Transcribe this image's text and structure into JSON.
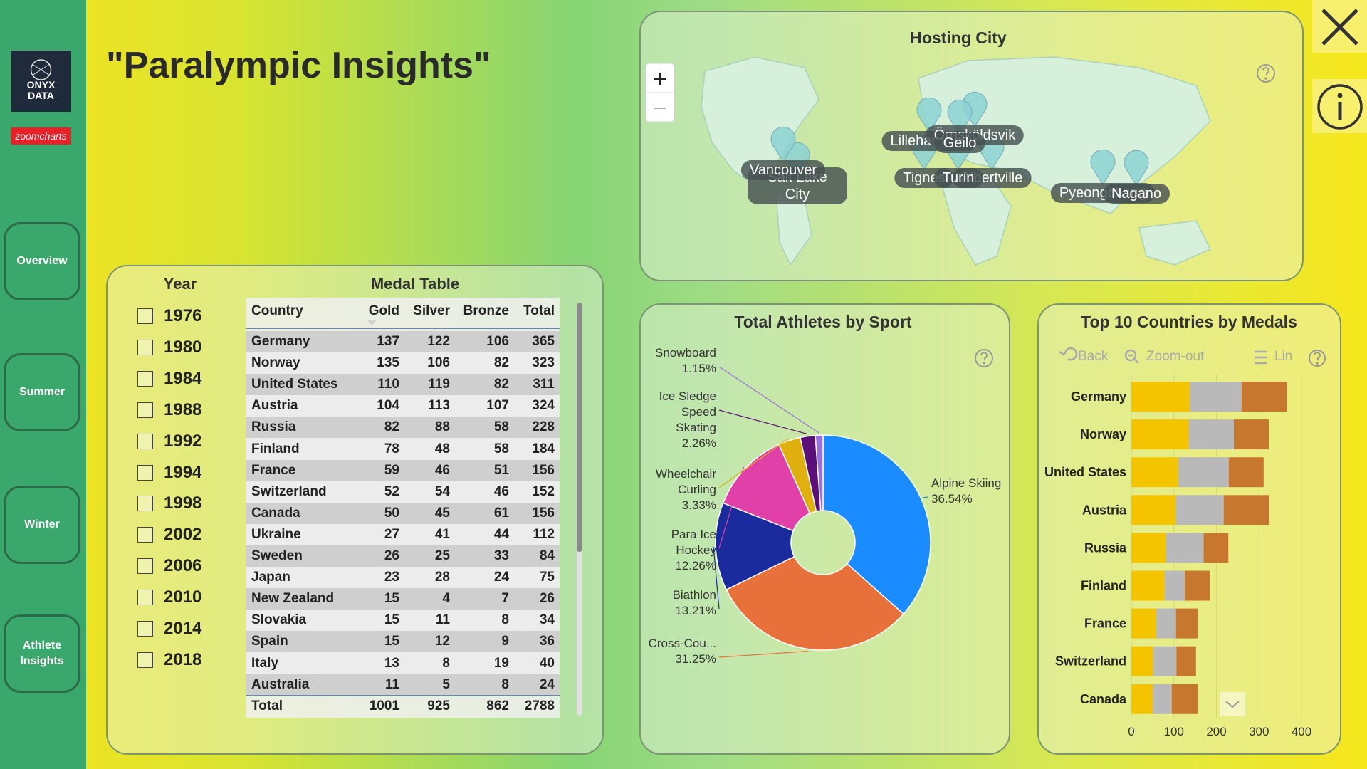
{
  "sidebar": {
    "logo": "ONYX DATA",
    "brand": "zoomcharts",
    "nav": [
      "Overview",
      "Summer",
      "Winter",
      "Athlete Insights"
    ]
  },
  "header": {
    "title": "\"Paralympic Insights\""
  },
  "year_filter": {
    "title": "Year",
    "years": [
      1976,
      1980,
      1984,
      1988,
      1992,
      1994,
      1998,
      2002,
      2006,
      2010,
      2014,
      2018
    ]
  },
  "medal_table": {
    "title": "Medal Table",
    "columns": [
      "Country",
      "Gold",
      "Silver",
      "Bronze",
      "Total"
    ],
    "rows": [
      [
        "Germany",
        137,
        122,
        106,
        365
      ],
      [
        "Norway",
        135,
        106,
        82,
        323
      ],
      [
        "United States",
        110,
        119,
        82,
        311
      ],
      [
        "Austria",
        104,
        113,
        107,
        324
      ],
      [
        "Russia",
        82,
        88,
        58,
        228
      ],
      [
        "Finland",
        78,
        48,
        58,
        184
      ],
      [
        "France",
        59,
        46,
        51,
        156
      ],
      [
        "Switzerland",
        52,
        54,
        46,
        152
      ],
      [
        "Canada",
        50,
        45,
        61,
        156
      ],
      [
        "Ukraine",
        27,
        41,
        44,
        112
      ],
      [
        "Sweden",
        26,
        25,
        33,
        84
      ],
      [
        "Japan",
        23,
        28,
        24,
        75
      ],
      [
        "New Zealand",
        15,
        4,
        7,
        26
      ],
      [
        "Slovakia",
        15,
        11,
        8,
        34
      ],
      [
        "Spain",
        15,
        12,
        9,
        36
      ],
      [
        "Italy",
        13,
        8,
        19,
        40
      ],
      [
        "Australia",
        11,
        5,
        8,
        24
      ]
    ],
    "total": [
      "Total",
      1001,
      925,
      862,
      2788
    ]
  },
  "map": {
    "title": "Hosting City",
    "cities": [
      "Salt Lake City",
      "Vancouver",
      "Lillehammer",
      "Örnsköldsvik",
      "Geilo",
      "Tignes",
      "Albertville",
      "Turin",
      "Pyeongchang",
      "Nagano"
    ]
  },
  "chart_data": [
    {
      "type": "pie",
      "title": "Total Athletes by Sport",
      "donut": true,
      "categories": [
        "Alpine Skiing",
        "Cross-Cou...",
        "Biathlon",
        "Para Ice Hockey",
        "Wheelchair Curling",
        "Ice Sledge Speed Skating",
        "Snowboard"
      ],
      "values": [
        36.54,
        31.25,
        13.21,
        12.26,
        3.33,
        2.26,
        1.15
      ],
      "value_labels": [
        "36.54%",
        "31.25%",
        "13.21%",
        "12.26%",
        "3.33%",
        "2.26%",
        "1.15%"
      ],
      "colors": [
        "#1a8cff",
        "#e8703a",
        "#1a2b9e",
        "#e040a8",
        "#e0b010",
        "#5a1078",
        "#9a70d8"
      ]
    },
    {
      "type": "bar",
      "orientation": "horizontal",
      "stacked": true,
      "title": "Top 10 Countries by Medals",
      "toolbar": [
        "Back",
        "Zoom-out",
        "Lin"
      ],
      "categories": [
        "Germany",
        "Norway",
        "United States",
        "Austria",
        "Russia",
        "Finland",
        "France",
        "Switzerland",
        "Canada"
      ],
      "series": [
        {
          "color": "#f5c400",
          "values": [
            137,
            135,
            110,
            104,
            82,
            78,
            59,
            52,
            50
          ]
        },
        {
          "color": "#b9b9b9",
          "values": [
            122,
            106,
            119,
            113,
            88,
            48,
            46,
            54,
            45
          ]
        },
        {
          "color": "#c8782e",
          "values": [
            106,
            82,
            82,
            107,
            58,
            58,
            51,
            46,
            61
          ]
        }
      ],
      "xlim": [
        0,
        400
      ],
      "xticks": [
        0,
        100,
        200,
        300,
        400
      ],
      "grid": true
    }
  ]
}
